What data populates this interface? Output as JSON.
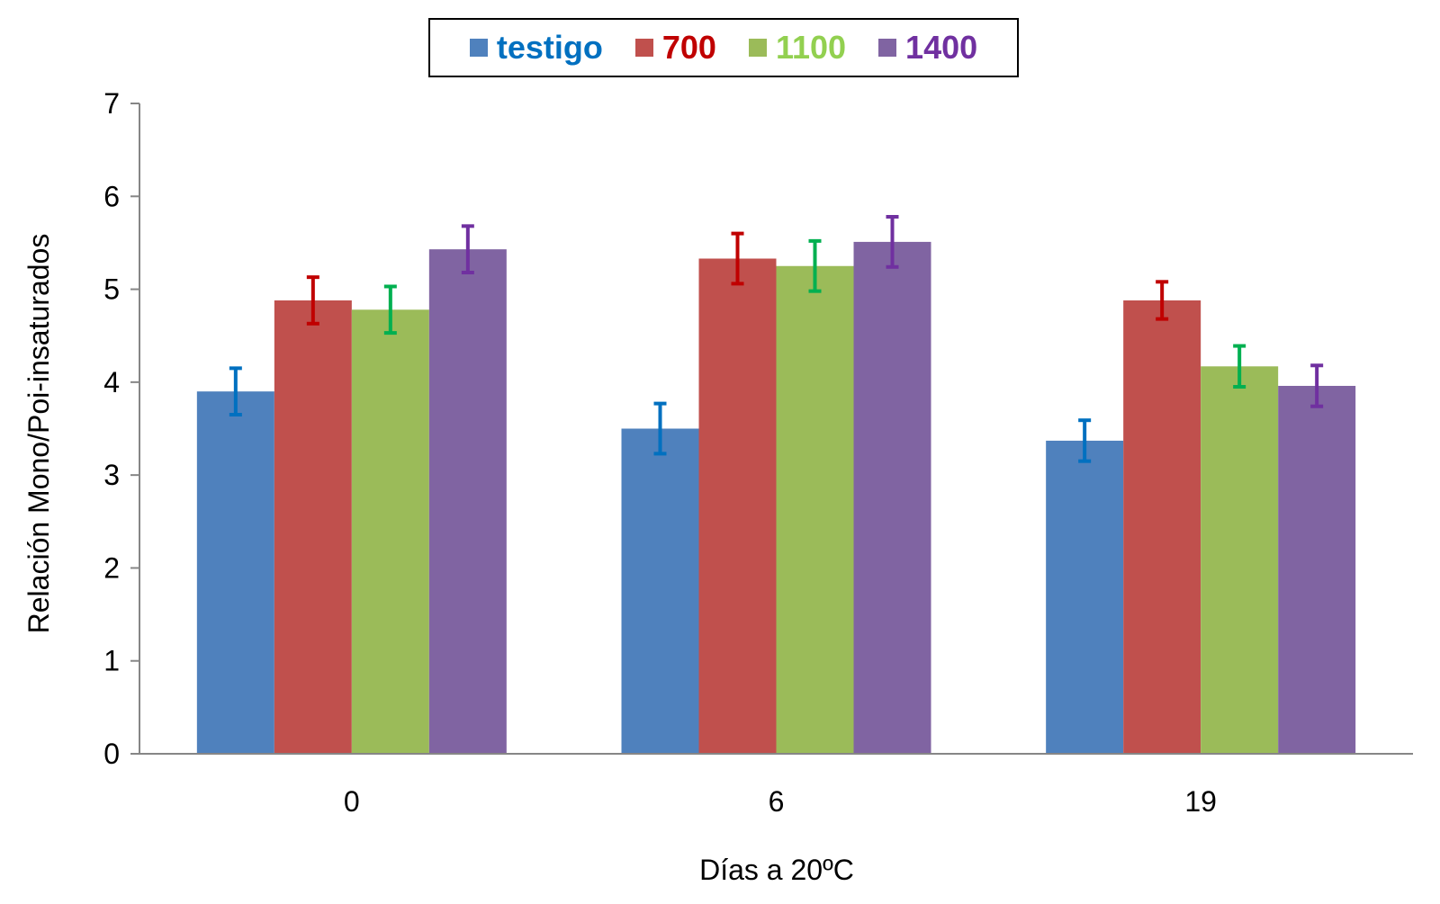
{
  "chart_data": {
    "type": "bar",
    "title": "",
    "xlabel": "Días a 20ºC",
    "ylabel": "Relación Mono/Poi-insaturados",
    "categories": [
      "0",
      "6",
      "19"
    ],
    "ylim": [
      0,
      7
    ],
    "yticks": [
      "0",
      "1",
      "2",
      "3",
      "4",
      "5",
      "6",
      "7"
    ],
    "grid": false,
    "legend_position": "top-center",
    "series": [
      {
        "name": "testigo",
        "values": [
          3.9,
          3.5,
          3.37
        ],
        "errors": [
          0.25,
          0.27,
          0.22
        ],
        "color": "#4F81BD",
        "label_color": "#0070C0",
        "error_color": "#0070C0"
      },
      {
        "name": "700",
        "values": [
          4.88,
          5.33,
          4.88
        ],
        "errors": [
          0.25,
          0.27,
          0.2
        ],
        "color": "#C0504D",
        "label_color": "#C00000",
        "error_color": "#C00000"
      },
      {
        "name": "1100",
        "values": [
          4.78,
          5.25,
          4.17
        ],
        "errors": [
          0.25,
          0.27,
          0.22
        ],
        "color": "#9BBB59",
        "label_color": "#92D050",
        "error_color": "#00B050"
      },
      {
        "name": "1400",
        "values": [
          5.43,
          5.51,
          3.96
        ],
        "errors": [
          0.25,
          0.27,
          0.22
        ],
        "color": "#8064A2",
        "label_color": "#7030A0",
        "error_color": "#7030A0"
      }
    ]
  }
}
